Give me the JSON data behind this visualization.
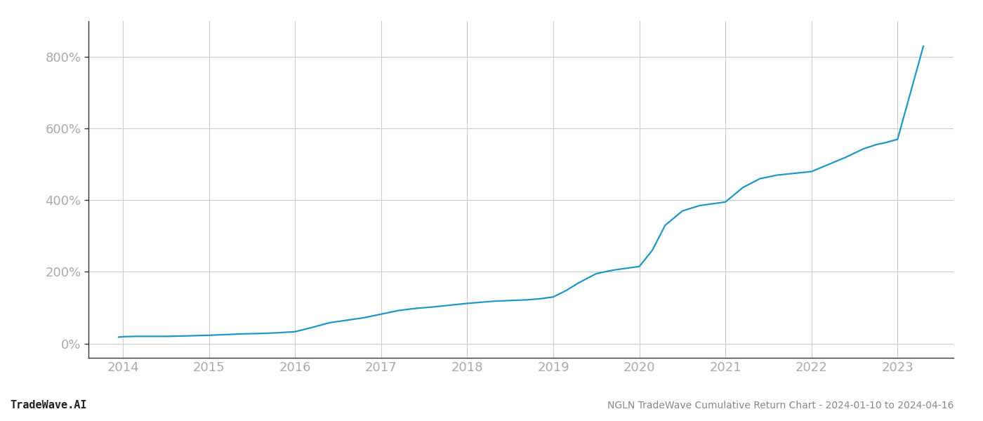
{
  "title": "NGLN TradeWave Cumulative Return Chart - 2024-01-10 to 2024-04-16",
  "watermark": "TradeWave.AI",
  "line_color": "#2196c4",
  "background_color": "#ffffff",
  "grid_color": "#cccccc",
  "tick_color": "#aaaaaa",
  "title_color": "#888888",
  "watermark_color": "#222222",
  "x_years": [
    2014,
    2015,
    2016,
    2017,
    2018,
    2019,
    2020,
    2021,
    2022,
    2023
  ],
  "y_ticks": [
    0,
    200,
    400,
    600,
    800
  ],
  "xlim": [
    2013.6,
    2023.65
  ],
  "ylim": [
    -40,
    900
  ],
  "data_x": [
    2013.95,
    2014.0,
    2014.15,
    2014.3,
    2014.5,
    2014.7,
    2014.85,
    2015.0,
    2015.2,
    2015.4,
    2015.6,
    2015.8,
    2016.0,
    2016.2,
    2016.4,
    2016.6,
    2016.8,
    2017.0,
    2017.2,
    2017.4,
    2017.6,
    2017.8,
    2018.0,
    2018.15,
    2018.3,
    2018.5,
    2018.7,
    2018.85,
    2019.0,
    2019.15,
    2019.3,
    2019.5,
    2019.7,
    2019.85,
    2020.0,
    2020.15,
    2020.3,
    2020.5,
    2020.7,
    2020.85,
    2021.0,
    2021.2,
    2021.4,
    2021.6,
    2021.8,
    2022.0,
    2022.2,
    2022.4,
    2022.6,
    2022.75,
    2022.85,
    2023.0,
    2023.15,
    2023.3
  ],
  "data_y": [
    18,
    19,
    20,
    20,
    20,
    21,
    22,
    23,
    25,
    27,
    28,
    30,
    33,
    45,
    58,
    65,
    72,
    82,
    92,
    98,
    102,
    107,
    112,
    115,
    118,
    120,
    122,
    125,
    130,
    148,
    170,
    195,
    205,
    210,
    215,
    260,
    330,
    370,
    385,
    390,
    395,
    435,
    460,
    470,
    475,
    480,
    500,
    520,
    543,
    555,
    560,
    570,
    700,
    830
  ],
  "line_width": 1.6
}
